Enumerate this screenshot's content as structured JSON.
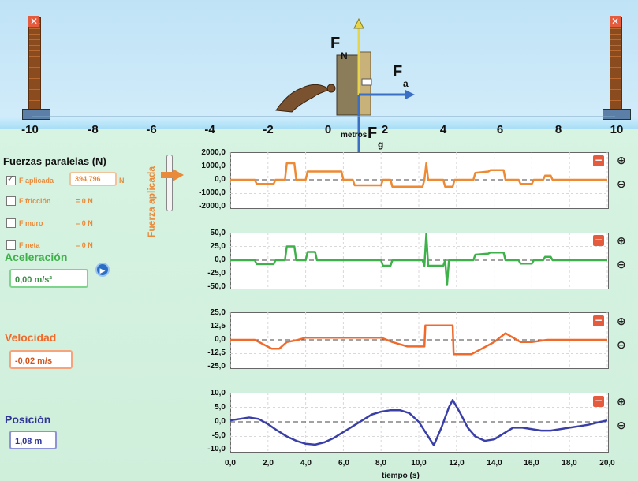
{
  "scene": {
    "axis_labels": [
      "-10",
      "-8",
      "-6",
      "-4",
      "-2",
      "0",
      "2",
      "4",
      "6",
      "8",
      "10"
    ],
    "axis_unit": "metros",
    "forces": {
      "normal": {
        "letter": "F",
        "sub": "N"
      },
      "applied": {
        "letter": "F",
        "sub": "a"
      },
      "gravity": {
        "letter": "F",
        "sub": "g"
      }
    },
    "wall_close_symbol": "✕"
  },
  "forces_panel": {
    "title": "Fuerzas paralelas (N)",
    "applied": {
      "label": "F aplicada",
      "value": "394,796",
      "unit": "N",
      "checked": true
    },
    "friction": {
      "label": "F fricción",
      "value": "= 0 N",
      "checked": false
    },
    "wall": {
      "label": "F muro",
      "value": "= 0 N",
      "checked": false
    },
    "net": {
      "label": "F neta",
      "value": "= 0 N",
      "checked": false
    },
    "slider_label": "Fuerza aplicada"
  },
  "acceleration": {
    "title": "Aceleración",
    "value": "0,00 m/s²"
  },
  "velocity": {
    "title": "Velocidad",
    "value": "-0,02 m/s"
  },
  "position": {
    "title": "Posición",
    "value": "1,08 m"
  },
  "graphs": {
    "x_ticks": [
      "0,0",
      "2,0",
      "4,0",
      "6,0",
      "8,0",
      "10,0",
      "12,0",
      "14,0",
      "16,0",
      "18,0",
      "20,0"
    ],
    "x_title": "tiempo (s)",
    "minus_symbol": "−",
    "zoom_in": "⊕",
    "zoom_out": "⊖"
  },
  "chart_data": [
    {
      "type": "line",
      "name": "Fuerza aplicada",
      "color": "#ee8a34",
      "y_ticks": [
        "2000,0",
        "1000,0",
        "0,0",
        "-1000,0",
        "-2000,0"
      ],
      "ylim": [
        -2000,
        2000
      ],
      "xlim": [
        0,
        20
      ],
      "x": [
        0,
        1.3,
        1.4,
        2.3,
        2.4,
        2.9,
        3.0,
        3.4,
        3.5,
        4.0,
        4.1,
        5.9,
        6.0,
        6.5,
        6.6,
        8.0,
        8.1,
        8.5,
        8.6,
        10.2,
        10.3,
        10.4,
        10.5,
        11.3,
        11.4,
        11.8,
        11.9,
        12.9,
        13.0,
        13.7,
        13.8,
        14.5,
        14.6,
        15.3,
        15.4,
        16.0,
        16.1,
        16.6,
        16.7,
        17.0,
        17.1,
        18.0,
        20
      ],
      "y": [
        0,
        0,
        -300,
        -300,
        0,
        0,
        1200,
        1200,
        0,
        0,
        600,
        600,
        0,
        0,
        -400,
        -400,
        0,
        0,
        -500,
        -500,
        0,
        1200,
        0,
        0,
        -500,
        -500,
        0,
        0,
        500,
        600,
        700,
        700,
        0,
        0,
        -300,
        -300,
        0,
        0,
        300,
        300,
        0,
        0,
        0
      ]
    },
    {
      "type": "line",
      "name": "Aceleración",
      "color": "#3fb14a",
      "y_ticks": [
        "50,0",
        "25,0",
        "0,0",
        "-25,0",
        "-50,0"
      ],
      "ylim": [
        -50,
        50
      ],
      "xlim": [
        0,
        20
      ],
      "x": [
        0,
        1.3,
        1.4,
        2.3,
        2.4,
        2.9,
        3.0,
        3.4,
        3.5,
        4.0,
        4.1,
        4.5,
        4.6,
        8.0,
        8.1,
        8.5,
        8.6,
        10.2,
        10.3,
        10.4,
        10.5,
        11.3,
        11.4,
        11.5,
        11.6,
        12.9,
        13.0,
        13.7,
        13.8,
        14.5,
        14.6,
        15.3,
        15.4,
        16.0,
        16.1,
        16.6,
        16.7,
        17.0,
        17.1,
        18.0,
        20
      ],
      "y": [
        0,
        0,
        -7,
        -7,
        0,
        0,
        25,
        25,
        0,
        0,
        15,
        15,
        0,
        0,
        -10,
        -10,
        0,
        0,
        -10,
        48,
        -10,
        -10,
        0,
        -45,
        0,
        0,
        10,
        12,
        14,
        14,
        0,
        0,
        -6,
        -6,
        0,
        0,
        6,
        6,
        0,
        0,
        0
      ]
    },
    {
      "type": "line",
      "name": "Velocidad",
      "color": "#f06a2c",
      "y_ticks": [
        "25,0",
        "12,5",
        "0,0",
        "-12,5",
        "-25,0"
      ],
      "ylim": [
        -25,
        25
      ],
      "xlim": [
        0,
        20
      ],
      "x": [
        0,
        1.3,
        2.2,
        2.6,
        3.0,
        3.6,
        4.0,
        4.2,
        8.0,
        8.6,
        9.4,
        10.0,
        10.3,
        10.35,
        11.8,
        11.85,
        12.8,
        14.0,
        14.6,
        15.4,
        16.0,
        16.8,
        18.0,
        20
      ],
      "y": [
        0,
        0,
        -8,
        -8,
        -2,
        0,
        2,
        2,
        2,
        -2,
        -6,
        -6,
        -6,
        13,
        13,
        -13,
        -13,
        -2,
        6,
        -2,
        -2,
        0,
        0,
        0
      ]
    },
    {
      "type": "line",
      "name": "Posición",
      "color": "#3a3fa8",
      "y_ticks": [
        "10,0",
        "5,0",
        "0,0",
        "-5,0",
        "-10,0"
      ],
      "ylim": [
        -10,
        10
      ],
      "xlim": [
        0,
        20
      ],
      "x": [
        0,
        0.5,
        1.0,
        1.5,
        2.0,
        2.5,
        3.0,
        3.5,
        4.0,
        4.5,
        5.0,
        5.5,
        6.0,
        6.5,
        7.0,
        7.5,
        8.0,
        8.5,
        9.0,
        9.5,
        10.0,
        10.4,
        10.8,
        11.2,
        11.6,
        11.8,
        12.2,
        12.6,
        13.0,
        13.5,
        14.0,
        14.5,
        15.0,
        15.5,
        16.0,
        16.5,
        17.0,
        17.5,
        18.0,
        18.5,
        19.0,
        19.5,
        20
      ],
      "y": [
        0.5,
        1.0,
        1.5,
        1.0,
        -0.8,
        -3.0,
        -5.0,
        -6.5,
        -7.5,
        -7.8,
        -7.0,
        -5.5,
        -3.5,
        -1.5,
        0.5,
        2.5,
        3.5,
        4.0,
        4.0,
        3.0,
        0.0,
        -4.0,
        -8.0,
        -2.0,
        5.0,
        7.5,
        3.0,
        -2.0,
        -5.0,
        -6.5,
        -6.0,
        -4.0,
        -2.0,
        -2.0,
        -2.5,
        -3.0,
        -3.0,
        -2.5,
        -2.0,
        -1.5,
        -1.0,
        -0.2,
        0.5
      ]
    }
  ]
}
